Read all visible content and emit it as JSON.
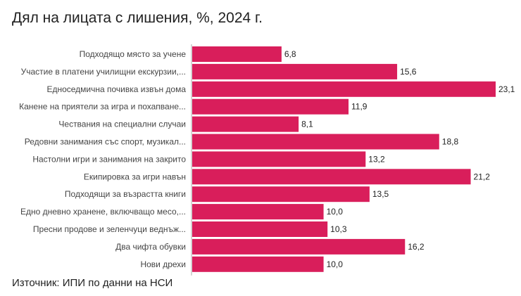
{
  "chart_data": {
    "type": "bar",
    "orientation": "horizontal",
    "title": "Дял на лицата с лишения, %, 2024 г.",
    "source": "Източник: ИПИ по данни на НСИ",
    "color": "#d91e5b",
    "xlim": [
      0,
      23.1
    ],
    "grid": false,
    "categories": [
      "Подходящо място за учене",
      "Участие в платени училищни екскурзии,...",
      "Едноседмична почивка извън дома",
      "Канене на приятели за игра и похапване...",
      "Чествания на специални случаи",
      "Редовни занимания със спорт, музикал...",
      "Настолни игри и занимания на закрито",
      "Екипировка за игри навън",
      "Подходящи за възрастта книги",
      "Едно дневно хранене, включващо месо,...",
      "Пресни продове и зеленчуци веднъж...",
      "Два чифта обувки",
      "Нови дрехи"
    ],
    "values": [
      6.8,
      15.6,
      23.1,
      11.9,
      8.1,
      18.8,
      13.2,
      21.2,
      13.5,
      10.0,
      10.3,
      16.2,
      10.0
    ],
    "value_labels": [
      "6,8",
      "15,6",
      "23,1",
      "11,9",
      "8,1",
      "18,8",
      "13,2",
      "21,2",
      "13,5",
      "10,0",
      "10,3",
      "16,2",
      "10,0"
    ]
  }
}
